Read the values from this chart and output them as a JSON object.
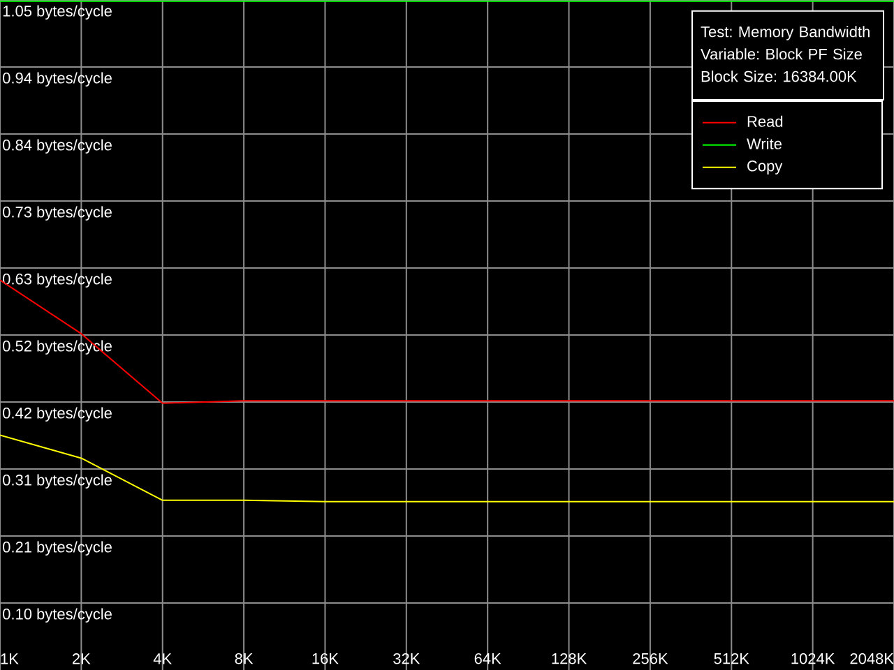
{
  "chart_data": {
    "type": "line",
    "annotations": [
      "Test: Memory Bandwidth",
      "Variable: Block PF Size",
      "Block Size: 16384.00K"
    ],
    "x": [
      1,
      2,
      4,
      8,
      16,
      32,
      64,
      128,
      256,
      512,
      1024,
      2048
    ],
    "series": [
      {
        "name": "Read",
        "color": "#ff0000",
        "values": [
          0.611,
          0.527,
          0.418,
          0.422,
          0.422,
          0.422,
          0.422,
          0.422,
          0.422,
          0.422,
          0.422,
          0.422
        ]
      },
      {
        "name": "Write",
        "color": "#00ff00",
        "values": [
          1.048,
          1.048,
          1.048,
          1.048,
          1.048,
          1.048,
          1.048,
          1.048,
          1.048,
          1.048,
          1.048,
          1.048
        ]
      },
      {
        "name": "Copy",
        "color": "#ffff00",
        "values": [
          0.368,
          0.332,
          0.266,
          0.266,
          0.264,
          0.264,
          0.264,
          0.264,
          0.264,
          0.264,
          0.264,
          0.264
        ]
      }
    ],
    "xlim": [
      1,
      2048
    ],
    "ylim": [
      0,
      1.05
    ],
    "xticks": [
      {
        "value": 1,
        "label": "1K"
      },
      {
        "value": 2,
        "label": "2K"
      },
      {
        "value": 4,
        "label": "4K"
      },
      {
        "value": 8,
        "label": "8K"
      },
      {
        "value": 16,
        "label": "16K"
      },
      {
        "value": 32,
        "label": "32K"
      },
      {
        "value": 64,
        "label": "64K"
      },
      {
        "value": 128,
        "label": "128K"
      },
      {
        "value": 256,
        "label": "256K"
      },
      {
        "value": 512,
        "label": "512K"
      },
      {
        "value": 1024,
        "label": "1024K"
      },
      {
        "value": 2048,
        "label": "2048K"
      }
    ],
    "yticks": [
      {
        "value": 0.105,
        "label": "0.10 bytes/cycle"
      },
      {
        "value": 0.21,
        "label": "0.21 bytes/cycle"
      },
      {
        "value": 0.315,
        "label": "0.31 bytes/cycle"
      },
      {
        "value": 0.42,
        "label": "0.42 bytes/cycle"
      },
      {
        "value": 0.525,
        "label": "0.52 bytes/cycle"
      },
      {
        "value": 0.63,
        "label": "0.63 bytes/cycle"
      },
      {
        "value": 0.735,
        "label": "0.73 bytes/cycle"
      },
      {
        "value": 0.84,
        "label": "0.84 bytes/cycle"
      },
      {
        "value": 0.945,
        "label": "0.94 bytes/cycle"
      },
      {
        "value": 1.05,
        "label": "1.05 bytes/cycle"
      }
    ],
    "log": "x",
    "grid": true,
    "legend": "top right",
    "marker": "none",
    "line_style": "solid"
  }
}
